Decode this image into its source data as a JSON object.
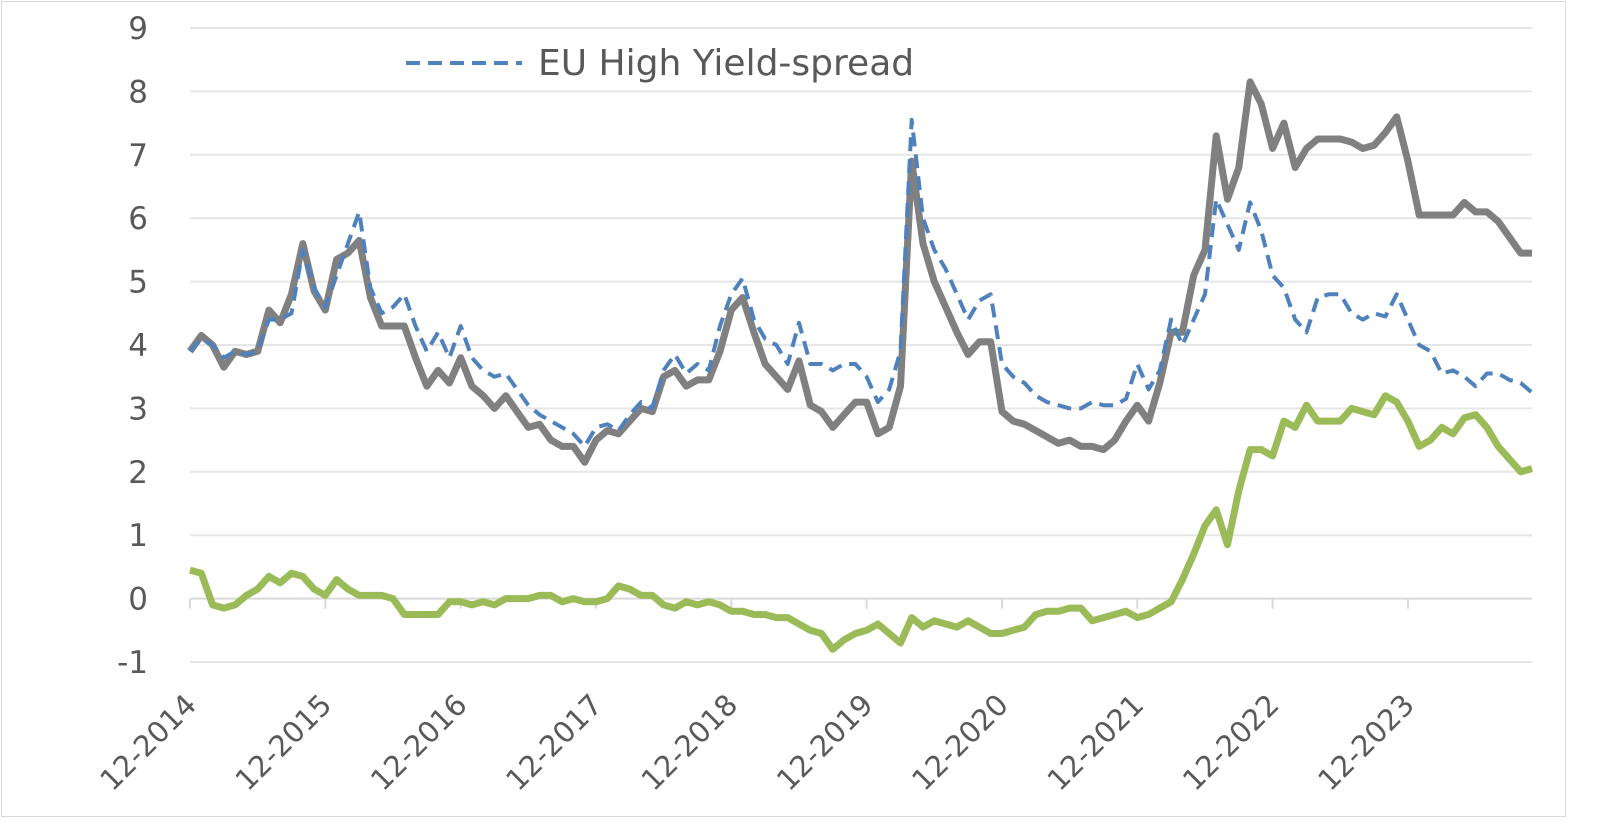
{
  "chart_data": {
    "type": "line",
    "title": "",
    "xlabel": "",
    "ylabel": "",
    "ylim": [
      -1,
      9
    ],
    "yticks": [
      "-1",
      "0",
      "1",
      "2",
      "3",
      "4",
      "5",
      "6",
      "7",
      "8",
      "9"
    ],
    "xticks": [
      "12-2014",
      "12-2015",
      "12-2016",
      "12-2017",
      "12-2018",
      "12-2019",
      "12-2020",
      "12-2021",
      "12-2022",
      "12-2023"
    ],
    "grid": "horizontal",
    "legend_position": "top-left",
    "x_start": "12-2014",
    "x_end": "11-2024",
    "series": [
      {
        "name": "EU High Yield-spread",
        "color": "#4f81bd",
        "style": "dashed",
        "values": [
          3.9,
          4.1,
          4.0,
          3.8,
          3.9,
          3.85,
          3.9,
          4.4,
          4.4,
          4.5,
          5.5,
          4.9,
          4.6,
          5.1,
          5.6,
          6.1,
          4.9,
          4.5,
          4.6,
          4.8,
          4.3,
          3.9,
          4.2,
          3.8,
          4.3,
          3.8,
          3.6,
          3.5,
          3.55,
          3.3,
          3.05,
          2.9,
          2.8,
          2.7,
          2.6,
          2.4,
          2.7,
          2.75,
          2.65,
          2.9,
          3.1,
          3.0,
          3.6,
          3.85,
          3.55,
          3.7,
          3.6,
          4.3,
          4.8,
          5.05,
          4.4,
          4.1,
          4.0,
          3.7,
          4.35,
          3.7,
          3.7,
          3.6,
          3.7,
          3.7,
          3.5,
          3.1,
          3.3,
          3.9,
          7.55,
          6.0,
          5.5,
          5.2,
          4.8,
          4.4,
          4.7,
          4.8,
          3.7,
          3.5,
          3.4,
          3.2,
          3.1,
          3.05,
          3.0,
          3.0,
          3.1,
          3.05,
          3.05,
          3.15,
          3.7,
          3.3,
          3.6,
          4.4,
          4.0,
          4.4,
          4.8,
          6.3,
          5.9,
          5.5,
          6.25,
          5.8,
          5.1,
          4.9,
          4.4,
          4.2,
          4.75,
          4.8,
          4.8,
          4.5,
          4.4,
          4.5,
          4.45,
          4.8,
          4.4,
          4.0,
          3.9,
          3.55,
          3.6,
          3.5,
          3.35,
          3.55,
          3.55,
          3.45,
          3.4,
          3.25
        ]
      },
      {
        "name": "",
        "color": "#808080",
        "style": "solid",
        "values": [
          3.9,
          4.15,
          4.0,
          3.65,
          3.9,
          3.85,
          3.9,
          4.55,
          4.35,
          4.8,
          5.6,
          4.85,
          4.55,
          5.35,
          5.45,
          5.65,
          4.75,
          4.3,
          4.3,
          4.3,
          3.8,
          3.35,
          3.6,
          3.4,
          3.8,
          3.35,
          3.2,
          3.0,
          3.2,
          2.95,
          2.7,
          2.75,
          2.5,
          2.4,
          2.4,
          2.15,
          2.5,
          2.65,
          2.6,
          2.8,
          3.0,
          2.95,
          3.5,
          3.6,
          3.35,
          3.45,
          3.45,
          3.9,
          4.55,
          4.75,
          4.2,
          3.7,
          3.5,
          3.3,
          3.75,
          3.05,
          2.95,
          2.7,
          2.9,
          3.1,
          3.1,
          2.6,
          2.7,
          3.35,
          6.9,
          5.6,
          5.0,
          4.6,
          4.2,
          3.85,
          4.05,
          4.05,
          2.95,
          2.8,
          2.75,
          2.65,
          2.55,
          2.45,
          2.5,
          2.4,
          2.4,
          2.35,
          2.5,
          2.8,
          3.05,
          2.8,
          3.4,
          4.2,
          4.2,
          5.1,
          5.5,
          7.3,
          6.3,
          6.8,
          8.15,
          7.8,
          7.1,
          7.5,
          6.8,
          7.1,
          7.25,
          7.25,
          7.25,
          7.2,
          7.1,
          7.15,
          7.35,
          7.6,
          6.9,
          6.05,
          6.05,
          6.05,
          6.05,
          6.25,
          6.1,
          6.1,
          5.95,
          5.7,
          5.45,
          5.45
        ]
      },
      {
        "name": "",
        "color": "#9bbb59",
        "style": "solid",
        "values": [
          0.45,
          0.4,
          -0.1,
          -0.15,
          -0.1,
          0.05,
          0.15,
          0.35,
          0.25,
          0.4,
          0.35,
          0.15,
          0.05,
          0.3,
          0.15,
          0.05,
          0.05,
          0.05,
          0.0,
          -0.25,
          -0.25,
          -0.25,
          -0.25,
          -0.05,
          -0.05,
          -0.1,
          -0.05,
          -0.1,
          0.0,
          0.0,
          0.0,
          0.05,
          0.05,
          -0.05,
          0.0,
          -0.05,
          -0.05,
          0.0,
          0.2,
          0.15,
          0.05,
          0.05,
          -0.1,
          -0.15,
          -0.05,
          -0.1,
          -0.05,
          -0.1,
          -0.2,
          -0.2,
          -0.25,
          -0.25,
          -0.3,
          -0.3,
          -0.4,
          -0.5,
          -0.55,
          -0.8,
          -0.65,
          -0.55,
          -0.5,
          -0.4,
          -0.55,
          -0.7,
          -0.3,
          -0.45,
          -0.35,
          -0.4,
          -0.45,
          -0.35,
          -0.45,
          -0.55,
          -0.55,
          -0.5,
          -0.45,
          -0.25,
          -0.2,
          -0.2,
          -0.15,
          -0.15,
          -0.35,
          -0.3,
          -0.25,
          -0.2,
          -0.3,
          -0.25,
          -0.15,
          -0.05,
          0.3,
          0.7,
          1.15,
          1.4,
          0.85,
          1.7,
          2.35,
          2.35,
          2.25,
          2.8,
          2.7,
          3.05,
          2.8,
          2.8,
          2.8,
          3.0,
          2.95,
          2.9,
          3.2,
          3.1,
          2.8,
          2.4,
          2.5,
          2.7,
          2.6,
          2.85,
          2.9,
          2.7,
          2.4,
          2.2,
          2.0,
          2.05
        ]
      }
    ]
  }
}
